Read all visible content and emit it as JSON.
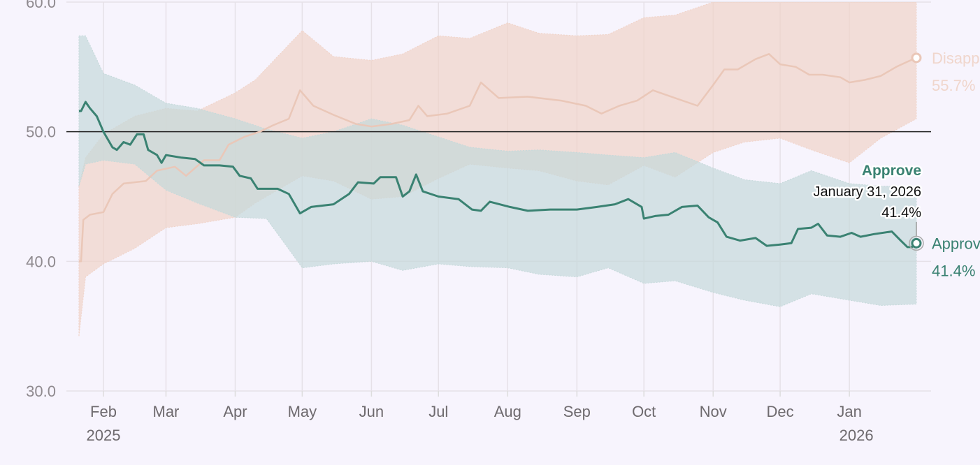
{
  "chart_data": {
    "type": "line",
    "ylim": [
      30,
      60
    ],
    "yticks": [
      "30.0",
      "40.0",
      "50.0",
      "60.0"
    ],
    "reference_line": 50,
    "xticks": [
      {
        "date": "2025-02-01",
        "label": "Feb",
        "year": "2025"
      },
      {
        "date": "2025-03-01",
        "label": "Mar"
      },
      {
        "date": "2025-04-01",
        "label": "Apr"
      },
      {
        "date": "2025-05-01",
        "label": "May"
      },
      {
        "date": "2025-06-01",
        "label": "Jun"
      },
      {
        "date": "2025-07-01",
        "label": "Jul"
      },
      {
        "date": "2025-08-01",
        "label": "Aug"
      },
      {
        "date": "2025-09-01",
        "label": "Sep"
      },
      {
        "date": "2025-10-01",
        "label": "Oct"
      },
      {
        "date": "2025-11-01",
        "label": "Nov"
      },
      {
        "date": "2025-12-01",
        "label": "Dec"
      },
      {
        "date": "2026-01-01",
        "label": "Jan",
        "year": "2026"
      }
    ],
    "grid": true,
    "series": [
      {
        "name": "Approve",
        "end_label": "41.4%",
        "color": "#3a8272",
        "band_color": "#c5d9da",
        "points": [
          [
            "2025-01-21",
            51.6
          ],
          [
            "2025-01-22",
            51.6
          ],
          [
            "2025-01-24",
            52.3
          ],
          [
            "2025-01-26",
            51.8
          ],
          [
            "2025-01-29",
            51.2
          ],
          [
            "2025-02-01",
            50.0
          ],
          [
            "2025-02-05",
            48.8
          ],
          [
            "2025-02-07",
            48.6
          ],
          [
            "2025-02-10",
            49.2
          ],
          [
            "2025-02-13",
            49.0
          ],
          [
            "2025-02-16",
            49.8
          ],
          [
            "2025-02-19",
            49.8
          ],
          [
            "2025-02-21",
            48.6
          ],
          [
            "2025-02-25",
            48.2
          ],
          [
            "2025-02-27",
            47.6
          ],
          [
            "2025-03-01",
            48.2
          ],
          [
            "2025-03-08",
            48.0
          ],
          [
            "2025-03-14",
            47.9
          ],
          [
            "2025-03-18",
            47.4
          ],
          [
            "2025-03-25",
            47.4
          ],
          [
            "2025-03-31",
            47.3
          ],
          [
            "2025-04-03",
            46.6
          ],
          [
            "2025-04-08",
            46.4
          ],
          [
            "2025-04-11",
            45.6
          ],
          [
            "2025-04-20",
            45.6
          ],
          [
            "2025-04-25",
            45.2
          ],
          [
            "2025-04-30",
            43.7
          ],
          [
            "2025-05-05",
            44.2
          ],
          [
            "2025-05-15",
            44.4
          ],
          [
            "2025-05-22",
            45.2
          ],
          [
            "2025-05-26",
            46.1
          ],
          [
            "2025-06-02",
            46.0
          ],
          [
            "2025-06-05",
            46.5
          ],
          [
            "2025-06-12",
            46.5
          ],
          [
            "2025-06-15",
            45.0
          ],
          [
            "2025-06-18",
            45.4
          ],
          [
            "2025-06-21",
            46.7
          ],
          [
            "2025-06-24",
            45.4
          ],
          [
            "2025-07-01",
            45.0
          ],
          [
            "2025-07-10",
            44.8
          ],
          [
            "2025-07-16",
            44.0
          ],
          [
            "2025-07-20",
            43.9
          ],
          [
            "2025-07-24",
            44.6
          ],
          [
            "2025-08-02",
            44.2
          ],
          [
            "2025-08-10",
            43.9
          ],
          [
            "2025-08-20",
            44.0
          ],
          [
            "2025-09-01",
            44.0
          ],
          [
            "2025-09-10",
            44.2
          ],
          [
            "2025-09-18",
            44.4
          ],
          [
            "2025-09-24",
            44.8
          ],
          [
            "2025-09-30",
            44.2
          ],
          [
            "2025-10-01",
            43.3
          ],
          [
            "2025-10-06",
            43.5
          ],
          [
            "2025-10-12",
            43.6
          ],
          [
            "2025-10-18",
            44.2
          ],
          [
            "2025-10-25",
            44.3
          ],
          [
            "2025-10-30",
            43.4
          ],
          [
            "2025-11-03",
            43.0
          ],
          [
            "2025-11-07",
            41.9
          ],
          [
            "2025-11-13",
            41.6
          ],
          [
            "2025-11-20",
            41.8
          ],
          [
            "2025-11-25",
            41.2
          ],
          [
            "2025-12-01",
            41.3
          ],
          [
            "2025-12-06",
            41.4
          ],
          [
            "2025-12-09",
            42.5
          ],
          [
            "2025-12-15",
            42.6
          ],
          [
            "2025-12-18",
            42.9
          ],
          [
            "2025-12-22",
            42.0
          ],
          [
            "2025-12-28",
            41.9
          ],
          [
            "2026-01-02",
            42.2
          ],
          [
            "2026-01-06",
            41.9
          ],
          [
            "2026-01-12",
            42.1
          ],
          [
            "2026-01-20",
            42.3
          ],
          [
            "2026-01-24",
            41.6
          ],
          [
            "2026-01-27",
            41.1
          ],
          [
            "2026-01-29",
            41.1
          ],
          [
            "2026-01-31",
            41.4
          ]
        ],
        "band": [
          [
            "2025-01-21",
            45.8,
            57.4
          ],
          [
            "2025-01-24",
            47.5,
            57.4
          ],
          [
            "2025-02-01",
            47.8,
            54.5
          ],
          [
            "2025-02-15",
            47.5,
            53.6
          ],
          [
            "2025-03-01",
            45.5,
            52.2
          ],
          [
            "2025-03-15",
            44.5,
            51.8
          ],
          [
            "2025-04-01",
            43.4,
            51.0
          ],
          [
            "2025-04-15",
            43.3,
            50.2
          ],
          [
            "2025-05-01",
            39.5,
            49.5
          ],
          [
            "2025-05-15",
            39.8,
            50.0
          ],
          [
            "2025-06-01",
            40.0,
            51.0
          ],
          [
            "2025-06-15",
            39.3,
            50.5
          ],
          [
            "2025-07-01",
            39.8,
            49.6
          ],
          [
            "2025-07-15",
            39.6,
            48.8
          ],
          [
            "2025-08-01",
            39.5,
            48.5
          ],
          [
            "2025-08-15",
            39.0,
            48.6
          ],
          [
            "2025-09-01",
            38.8,
            48.4
          ],
          [
            "2025-09-15",
            39.5,
            48.2
          ],
          [
            "2025-10-01",
            38.3,
            48.0
          ],
          [
            "2025-10-15",
            38.5,
            48.4
          ],
          [
            "2025-11-01",
            37.6,
            47.2
          ],
          [
            "2025-11-15",
            37.0,
            46.3
          ],
          [
            "2025-12-01",
            36.5,
            46.0
          ],
          [
            "2025-12-15",
            37.5,
            47.0
          ],
          [
            "2026-01-01",
            37.0,
            46.0
          ],
          [
            "2026-01-15",
            36.6,
            45.8
          ],
          [
            "2026-01-31",
            36.7,
            45.8
          ]
        ]
      },
      {
        "name": "Disapprove",
        "end_label": "55.7%",
        "color": "#eac7b8",
        "band_color": "#f0d3c8",
        "points": [
          [
            "2025-01-21",
            40.0
          ],
          [
            "2025-01-22",
            40.0
          ],
          [
            "2025-01-23",
            43.2
          ],
          [
            "2025-01-26",
            43.6
          ],
          [
            "2025-02-01",
            43.8
          ],
          [
            "2025-02-05",
            45.2
          ],
          [
            "2025-02-10",
            46.0
          ],
          [
            "2025-02-20",
            46.2
          ],
          [
            "2025-02-25",
            47.0
          ],
          [
            "2025-03-05",
            47.3
          ],
          [
            "2025-03-10",
            46.6
          ],
          [
            "2025-03-18",
            47.8
          ],
          [
            "2025-03-25",
            47.8
          ],
          [
            "2025-03-29",
            49.0
          ],
          [
            "2025-04-05",
            49.6
          ],
          [
            "2025-04-12",
            50.0
          ],
          [
            "2025-04-18",
            50.5
          ],
          [
            "2025-04-25",
            51.0
          ],
          [
            "2025-04-30",
            53.2
          ],
          [
            "2025-05-06",
            52.0
          ],
          [
            "2025-05-15",
            51.3
          ],
          [
            "2025-05-25",
            50.6
          ],
          [
            "2025-06-01",
            50.4
          ],
          [
            "2025-06-10",
            50.6
          ],
          [
            "2025-06-18",
            50.9
          ],
          [
            "2025-06-22",
            52.0
          ],
          [
            "2025-06-26",
            51.2
          ],
          [
            "2025-07-05",
            51.4
          ],
          [
            "2025-07-15",
            52.0
          ],
          [
            "2025-07-20",
            53.8
          ],
          [
            "2025-07-28",
            52.6
          ],
          [
            "2025-08-10",
            52.7
          ],
          [
            "2025-08-25",
            52.4
          ],
          [
            "2025-09-05",
            52.0
          ],
          [
            "2025-09-12",
            51.4
          ],
          [
            "2025-09-20",
            52.0
          ],
          [
            "2025-09-28",
            52.4
          ],
          [
            "2025-10-05",
            53.2
          ],
          [
            "2025-10-15",
            52.6
          ],
          [
            "2025-10-25",
            52.0
          ],
          [
            "2025-11-01",
            53.6
          ],
          [
            "2025-11-06",
            54.8
          ],
          [
            "2025-11-12",
            54.8
          ],
          [
            "2025-11-20",
            55.6
          ],
          [
            "2025-11-26",
            56.0
          ],
          [
            "2025-12-01",
            55.2
          ],
          [
            "2025-12-08",
            55.0
          ],
          [
            "2025-12-14",
            54.4
          ],
          [
            "2025-12-20",
            54.4
          ],
          [
            "2025-12-28",
            54.2
          ],
          [
            "2026-01-01",
            53.8
          ],
          [
            "2026-01-08",
            54.0
          ],
          [
            "2026-01-15",
            54.3
          ],
          [
            "2026-01-22",
            55.0
          ],
          [
            "2026-01-27",
            55.4
          ],
          [
            "2026-01-31",
            55.7
          ]
        ],
        "band": [
          [
            "2025-01-21",
            34.2,
            45.8
          ],
          [
            "2025-01-24",
            38.8,
            48.0
          ],
          [
            "2025-02-01",
            39.8,
            49.8
          ],
          [
            "2025-02-15",
            41.0,
            51.2
          ],
          [
            "2025-03-01",
            42.6,
            51.8
          ],
          [
            "2025-03-15",
            42.9,
            51.6
          ],
          [
            "2025-04-01",
            43.4,
            53.0
          ],
          [
            "2025-04-10",
            44.5,
            54.0
          ],
          [
            "2025-05-01",
            46.6,
            57.8
          ],
          [
            "2025-05-15",
            46.2,
            55.8
          ],
          [
            "2025-06-01",
            44.8,
            55.5
          ],
          [
            "2025-06-15",
            45.0,
            56.0
          ],
          [
            "2025-07-01",
            46.4,
            57.4
          ],
          [
            "2025-07-15",
            47.5,
            57.2
          ],
          [
            "2025-08-01",
            47.2,
            58.4
          ],
          [
            "2025-08-15",
            47.0,
            57.6
          ],
          [
            "2025-09-01",
            46.2,
            57.4
          ],
          [
            "2025-09-15",
            45.9,
            57.5
          ],
          [
            "2025-10-01",
            47.4,
            58.8
          ],
          [
            "2025-10-15",
            46.5,
            59.0
          ],
          [
            "2025-11-01",
            48.4,
            60.0
          ],
          [
            "2025-11-15",
            49.2,
            60.0
          ],
          [
            "2025-12-01",
            49.5,
            60.0
          ],
          [
            "2025-12-15",
            48.6,
            60.0
          ],
          [
            "2026-01-01",
            47.6,
            60.0
          ],
          [
            "2026-01-15",
            49.5,
            60.0
          ],
          [
            "2026-01-31",
            51.0,
            60.0
          ]
        ]
      }
    ],
    "tooltip": {
      "series": "Approve",
      "date": "January 31, 2026",
      "value": "41.4%"
    }
  }
}
